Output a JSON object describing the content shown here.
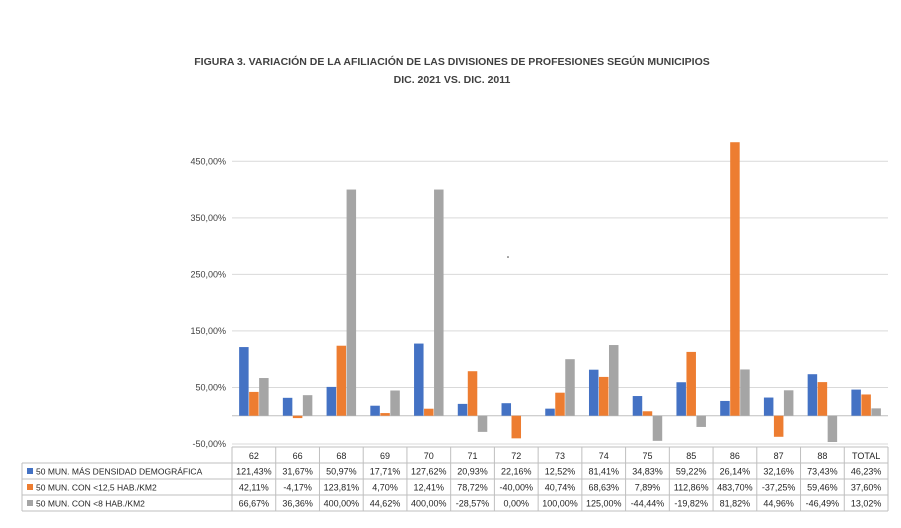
{
  "chart_data": {
    "type": "bar",
    "title": "FIGURA 3. VARIACIÓN DE LA AFILIACIÓN DE LAS DIVISIONES DE PROFESIONES SEGÚN MUNICIPIOS",
    "subtitle": "DIC. 2021 VS. DIC. 2011",
    "xlabel": "",
    "ylabel": "",
    "ylim": [
      -50,
      500
    ],
    "yticks": [
      -50,
      50,
      150,
      250,
      350,
      450
    ],
    "ytick_labels": [
      "-50,00%",
      "50,00%",
      "150,00%",
      "250,00%",
      "350,00%",
      "450,00%"
    ],
    "grid": true,
    "legend": "data-table-below",
    "categories": [
      "62",
      "66",
      "68",
      "69",
      "70",
      "71",
      "72",
      "73",
      "74",
      "75",
      "85",
      "86",
      "87",
      "88",
      "TOTAL"
    ],
    "series": [
      {
        "name": "50 MUN. MÁS DENSIDAD DEMOGRÁFICA",
        "color": "#4472C4",
        "values": [
          121.43,
          31.67,
          50.97,
          17.71,
          127.62,
          20.93,
          22.16,
          12.52,
          81.41,
          34.83,
          59.22,
          26.14,
          32.16,
          73.43,
          46.23
        ],
        "labels": [
          "121,43%",
          "31,67%",
          "50,97%",
          "17,71%",
          "127,62%",
          "20,93%",
          "22,16%",
          "12,52%",
          "81,41%",
          "34,83%",
          "59,22%",
          "26,14%",
          "32,16%",
          "73,43%",
          "46,23%"
        ]
      },
      {
        "name": "50 MUN. CON <12,5 HAB./KM2",
        "color": "#ED7D31",
        "values": [
          42.11,
          -4.17,
          123.81,
          4.7,
          12.41,
          78.72,
          -40.0,
          40.74,
          68.63,
          7.89,
          112.86,
          483.7,
          -37.25,
          59.46,
          37.6
        ],
        "labels": [
          "42,11%",
          "-4,17%",
          "123,81%",
          "4,70%",
          "12,41%",
          "78,72%",
          "-40,00%",
          "40,74%",
          "68,63%",
          "7,89%",
          "112,86%",
          "483,70%",
          "-37,25%",
          "59,46%",
          "37,60%"
        ]
      },
      {
        "name": "50 MUN. CON <8 HAB./KM2",
        "color": "#A5A5A5",
        "values": [
          66.67,
          36.36,
          400.0,
          44.62,
          400.0,
          -28.57,
          0.0,
          100.0,
          125.0,
          -44.44,
          -19.82,
          81.82,
          44.96,
          -46.49,
          13.02
        ],
        "labels": [
          "66,67%",
          "36,36%",
          "400,00%",
          "44,62%",
          "400,00%",
          "-28,57%",
          "0,00%",
          "100,00%",
          "125,00%",
          "-44,44%",
          "-19,82%",
          "81,82%",
          "44,96%",
          "-46,49%",
          "13,02%"
        ]
      }
    ]
  }
}
